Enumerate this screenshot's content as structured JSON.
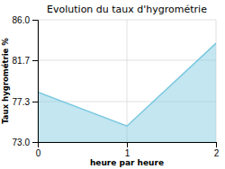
{
  "chart_data": {
    "type": "area",
    "title": "Evolution du taux d'hygrométrie",
    "xlabel": "heure par heure",
    "ylabel": "Taux hygrométrie %",
    "x": [
      0,
      1,
      2
    ],
    "values": [
      78.3,
      74.7,
      83.5
    ],
    "color": "#7ac8e0",
    "xlim": [
      0,
      2
    ],
    "ylim": [
      73.0,
      86.0
    ],
    "xticks": [
      0,
      1,
      2
    ],
    "yticks": [
      {
        "value": 73.0,
        "label": "73.0"
      },
      77.3,
      81.7,
      {
        "value": 86.0,
        "label": "86.0"
      }
    ],
    "grid": true
  }
}
